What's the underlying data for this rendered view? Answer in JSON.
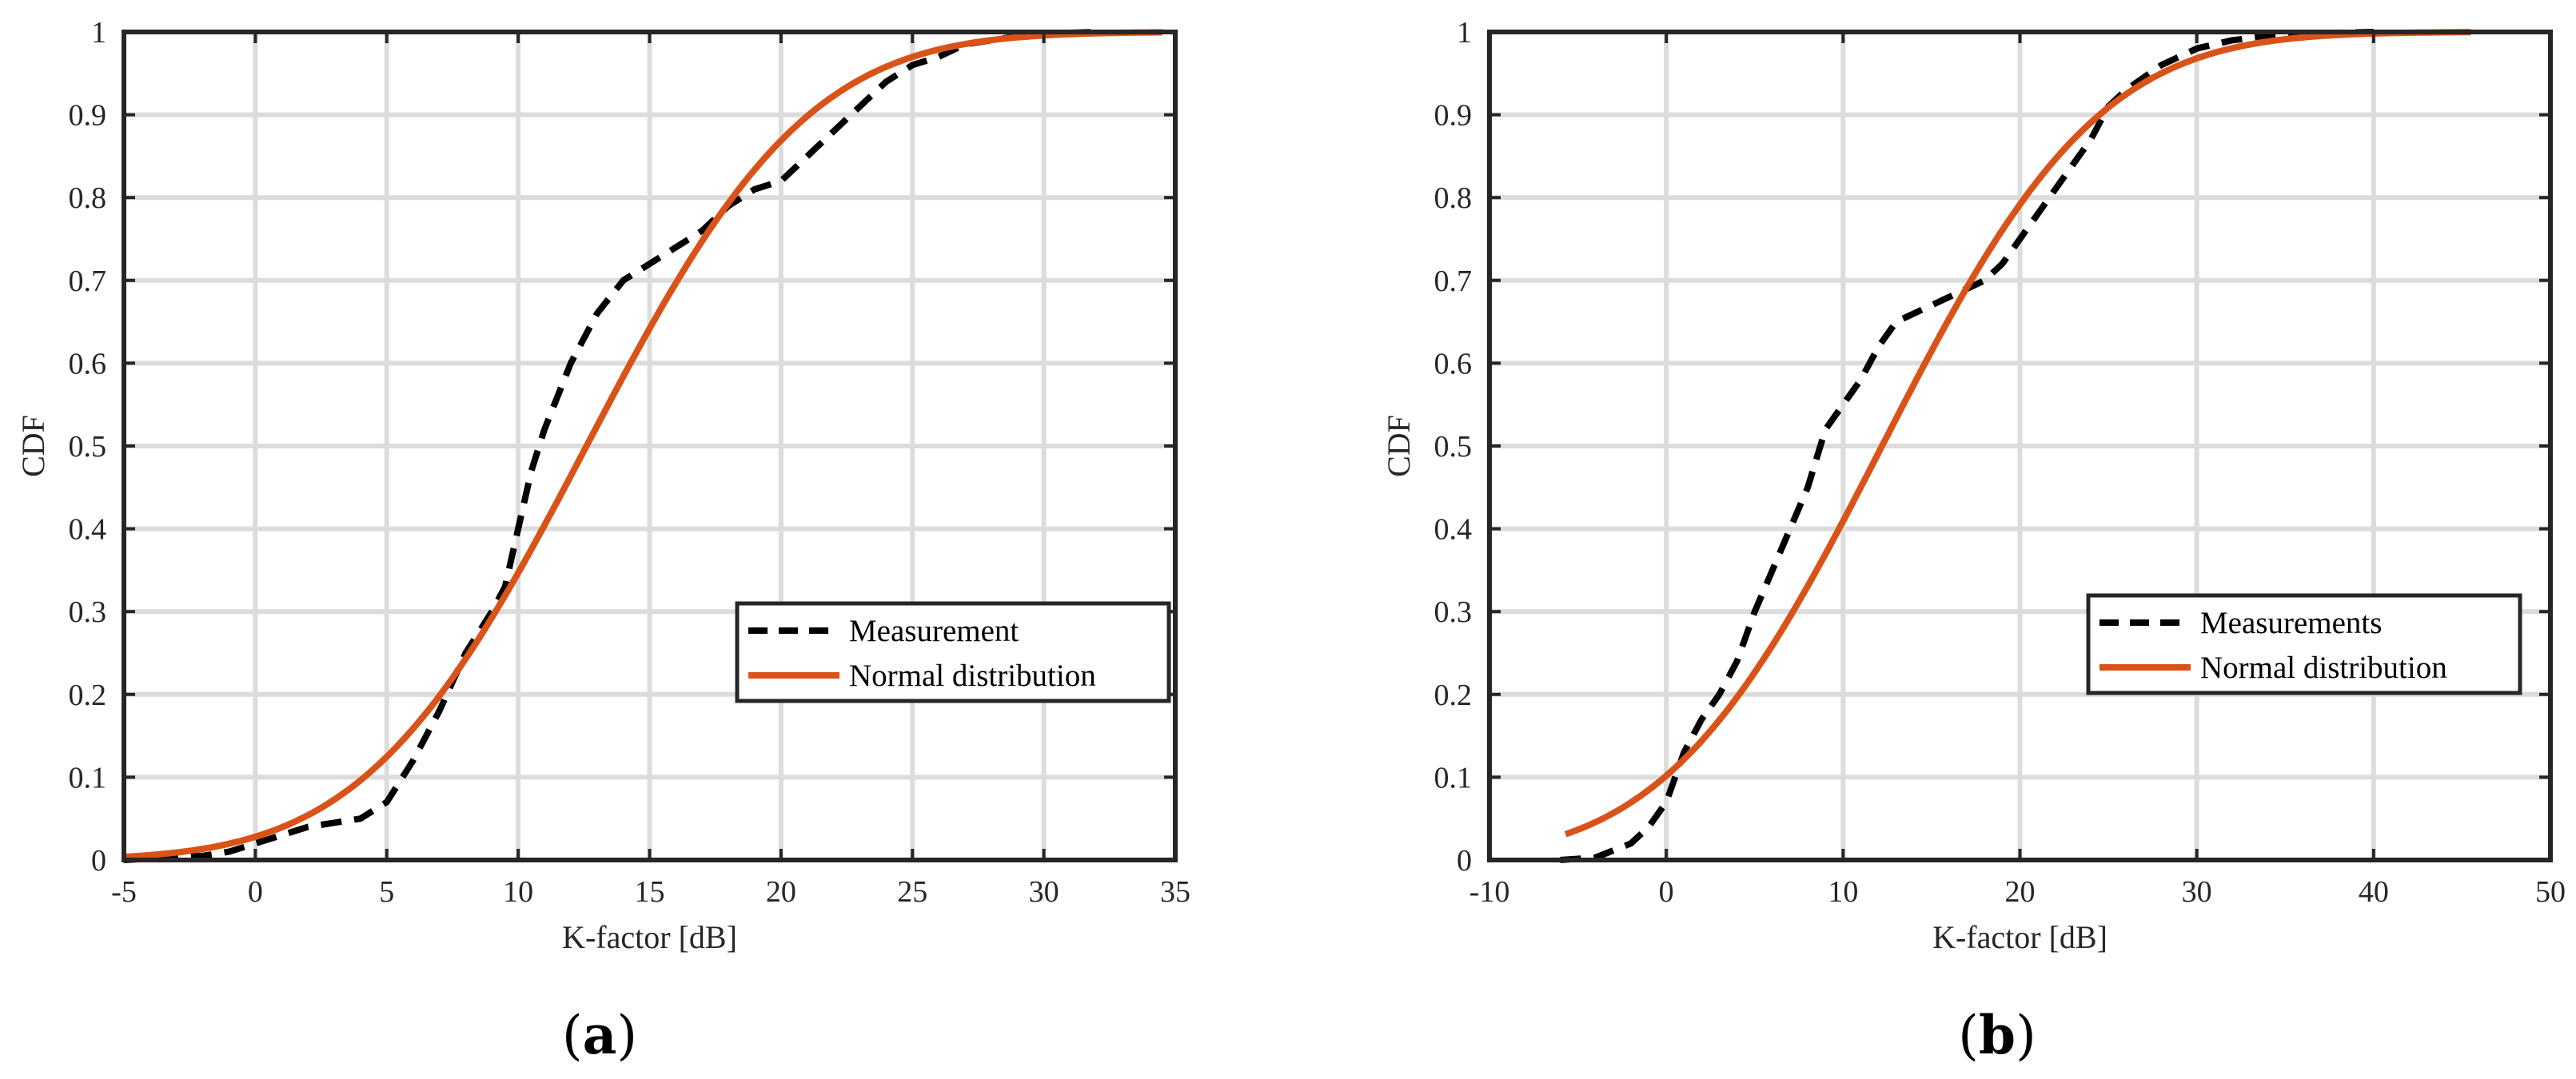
{
  "colors": {
    "measurement": "#000000",
    "normal": "#D95319",
    "grid": "#dcdcdc",
    "axes": "#262626"
  },
  "chart_data": [
    {
      "panel": "(a)",
      "panel_letter": "a",
      "type": "line",
      "xlabel": "K-factor [dB]",
      "ylabel": "CDF",
      "xlim": [
        -5,
        35
      ],
      "ylim": [
        0,
        1
      ],
      "xticks": [
        -5,
        0,
        5,
        10,
        15,
        20,
        25,
        30,
        35
      ],
      "yticks": [
        0,
        0.1,
        0.2,
        0.3,
        0.4,
        0.5,
        0.6,
        0.7,
        0.8,
        0.9,
        1
      ],
      "grid": true,
      "legend": {
        "placement": "lower-right",
        "entries": [
          "Measurement",
          "Normal distribution"
        ]
      },
      "series": [
        {
          "name": "Measurement",
          "style": "dashed",
          "x": [
            -5,
            -2,
            -1,
            0,
            1,
            2,
            3,
            4,
            5,
            6,
            7,
            8,
            9,
            9.5,
            10,
            10.5,
            11,
            12,
            13,
            14,
            15,
            16,
            17,
            18,
            19,
            20,
            21,
            22,
            23,
            24,
            25,
            26,
            27,
            28,
            29,
            30,
            31,
            32
          ],
          "y": [
            0,
            0.005,
            0.01,
            0.02,
            0.03,
            0.04,
            0.045,
            0.05,
            0.07,
            0.12,
            0.18,
            0.25,
            0.3,
            0.33,
            0.4,
            0.47,
            0.52,
            0.6,
            0.66,
            0.7,
            0.72,
            0.74,
            0.76,
            0.79,
            0.81,
            0.82,
            0.85,
            0.88,
            0.91,
            0.94,
            0.96,
            0.97,
            0.985,
            0.99,
            0.995,
            0.997,
            0.999,
            1.0
          ]
        },
        {
          "name": "Normal distribution",
          "style": "solid",
          "mu": 12.6,
          "sigma": 6.6,
          "x_start": -5,
          "x_end": 34.5
        }
      ]
    },
    {
      "panel": "(b)",
      "panel_letter": "b",
      "type": "line",
      "xlabel": "K-factor [dB]",
      "ylabel": "CDF",
      "xlim": [
        -10,
        50
      ],
      "ylim": [
        0,
        1
      ],
      "xticks": [
        -10,
        0,
        10,
        20,
        30,
        40,
        50
      ],
      "yticks": [
        0,
        0.1,
        0.2,
        0.3,
        0.4,
        0.5,
        0.6,
        0.7,
        0.8,
        0.9,
        1
      ],
      "grid": true,
      "legend": {
        "placement": "lower-right",
        "entries": [
          "Measurements",
          "Normal distribution"
        ]
      },
      "series": [
        {
          "name": "Measurements",
          "style": "dashed",
          "x": [
            -6,
            -4,
            -2,
            -1,
            0,
            0.5,
            1,
            2,
            3,
            4,
            5,
            6,
            7,
            8,
            9,
            10,
            11,
            12,
            13,
            14,
            15,
            16,
            17,
            18,
            19,
            20,
            21,
            22,
            23,
            24,
            25,
            26,
            28,
            30,
            32,
            34,
            36,
            38,
            40
          ],
          "y": [
            0,
            0.003,
            0.02,
            0.04,
            0.07,
            0.1,
            0.13,
            0.17,
            0.2,
            0.24,
            0.3,
            0.35,
            0.4,
            0.45,
            0.52,
            0.55,
            0.58,
            0.62,
            0.65,
            0.66,
            0.67,
            0.68,
            0.69,
            0.7,
            0.72,
            0.75,
            0.78,
            0.81,
            0.84,
            0.87,
            0.91,
            0.93,
            0.96,
            0.98,
            0.99,
            0.995,
            0.998,
            0.999,
            1.0
          ]
        },
        {
          "name": "Normal distribution",
          "style": "solid",
          "mu": 12.2,
          "sigma": 9.6,
          "x_start": -5.7,
          "x_end": 45.5
        }
      ]
    }
  ]
}
